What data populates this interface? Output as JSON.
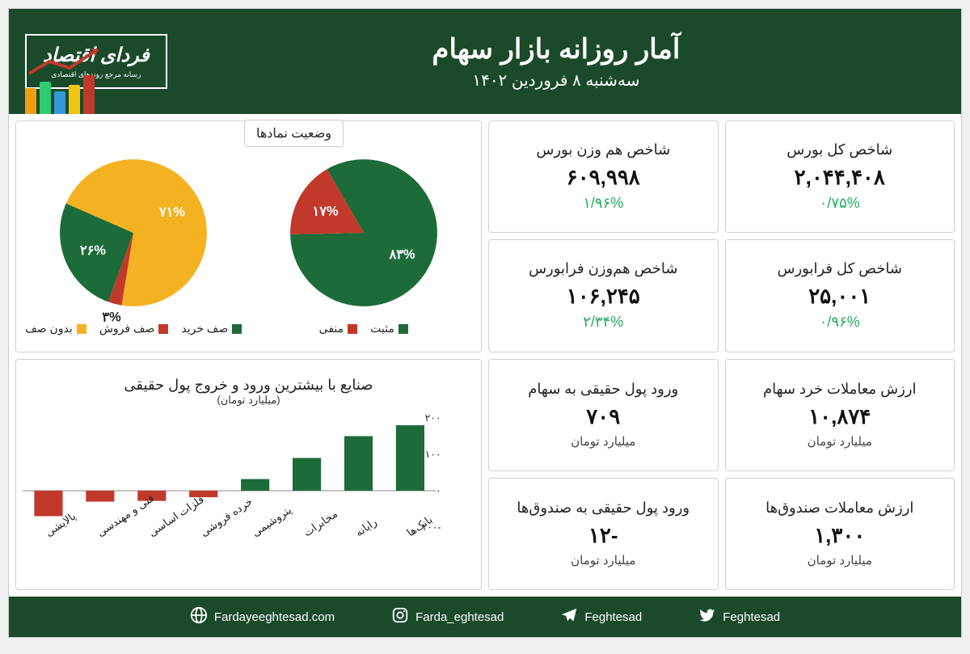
{
  "colors": {
    "header_bg": "#1b4a2a",
    "card_border": "#d0d0d0",
    "pos_green": "#1e6b3a",
    "neg_red": "#c0392b",
    "queue_none": "#f4b223",
    "text_green": "#1fae5c",
    "text_red": "#c0392b"
  },
  "header": {
    "title": "آمار روزانه بازار سهام",
    "subtitle": "سه‌شنبه ۸ فروردین ۱۴۰۲",
    "logo_main": "فردای اقتصاد",
    "logo_sub": "رسانه مرجع روندهای اقتصادی",
    "decor_bars": [
      {
        "h": 48,
        "c": "#c0392b"
      },
      {
        "h": 36,
        "c": "#f1c40f"
      },
      {
        "h": 28,
        "c": "#3498db"
      },
      {
        "h": 40,
        "c": "#2ecc71"
      },
      {
        "h": 32,
        "c": "#f39c12"
      }
    ]
  },
  "stat_cards": [
    {
      "key": "total_index",
      "title": "شاخص کل بورس",
      "value": "۲,۰۴۴,۴۰۸",
      "change": "۰/۷۵%",
      "change_class": "green"
    },
    {
      "key": "equal_index",
      "title": "شاخص هم وزن بورس",
      "value": "۶۰۹,۹۹۸",
      "change": "۱/۹۶%",
      "change_class": "green"
    },
    {
      "key": "fara_total",
      "title": "شاخص کل فرابورس",
      "value": "۲۵,۰۰۱",
      "change": "۰/۹۶%",
      "change_class": "green"
    },
    {
      "key": "fara_equal",
      "title": "شاخص هم‌وزن فرابورس",
      "value": "۱۰۶,۲۴۵",
      "change": "۲/۳۴%",
      "change_class": "green"
    },
    {
      "key": "retail_value",
      "title": "ارزش معاملات خرد سهام",
      "value": "۱۰,۸۷۴",
      "unit": "میلیارد تومان"
    },
    {
      "key": "real_inflow",
      "title": "ورود پول حقیقی به سهام",
      "value": "۷۰۹",
      "value_class": "green",
      "unit": "میلیارد تومان"
    },
    {
      "key": "fund_value",
      "title": "ارزش معاملات صندوق‌ها",
      "value": "۱,۳۰۰",
      "unit": "میلیارد تومان"
    },
    {
      "key": "fund_inflow",
      "title": "ورود پول حقیقی به صندوق‌ها",
      "value": "-۱۲",
      "value_class": "red",
      "unit": "میلیارد تومان"
    }
  ],
  "pies": {
    "tab_label": "وضعیت نمادها",
    "left": {
      "slices": [
        {
          "label": "۲۶%",
          "value": 26,
          "color": "#1e6b3a"
        },
        {
          "label": "۷۱%",
          "value": 71,
          "color": "#f4b223"
        },
        {
          "label": "۳%",
          "value": 3,
          "color": "#c0392b"
        }
      ],
      "legend": [
        {
          "label": "صف خرید",
          "color": "#1e6b3a"
        },
        {
          "label": "صف فروش",
          "color": "#c0392b"
        },
        {
          "label": "بدون صف",
          "color": "#f4b223"
        }
      ]
    },
    "right": {
      "slices": [
        {
          "label": "۸۳%",
          "value": 83,
          "color": "#1e6b3a"
        },
        {
          "label": "۱۷%",
          "value": 17,
          "color": "#c0392b"
        }
      ],
      "legend": [
        {
          "label": "مثبت",
          "color": "#1e6b3a"
        },
        {
          "label": "منفی",
          "color": "#c0392b"
        }
      ]
    }
  },
  "barChart": {
    "title": "صنایع با بیشترین ورود و خروج پول حقیقی",
    "subtitle": "(میلیارد تومان)",
    "yticks": [
      -100,
      0,
      100,
      200
    ],
    "ytick_labels": [
      "-۱۰۰",
      "۰",
      "۱۰۰",
      "۲۰۰"
    ],
    "pos_color": "#1e6b3a",
    "neg_color": "#c0392b",
    "bars": [
      {
        "cat": "بانک‌ها",
        "value": 180
      },
      {
        "cat": "رایانه",
        "value": 150
      },
      {
        "cat": "مخابرات",
        "value": 90
      },
      {
        "cat": "پتروشیمی",
        "value": 32
      },
      {
        "cat": "خرده فروشی",
        "value": -18
      },
      {
        "cat": "فلزات اساسی",
        "value": -28
      },
      {
        "cat": "فنی و مهندسی",
        "value": -30
      },
      {
        "cat": "پالایشی",
        "value": -70
      }
    ]
  },
  "footer": {
    "items": [
      {
        "icon": "globe",
        "label": "Fardayeeghtesad.com"
      },
      {
        "icon": "instagram",
        "label": "Farda_eghtesad"
      },
      {
        "icon": "telegram",
        "label": "Feghtesad"
      },
      {
        "icon": "twitter",
        "label": "Feghtesad"
      }
    ]
  }
}
